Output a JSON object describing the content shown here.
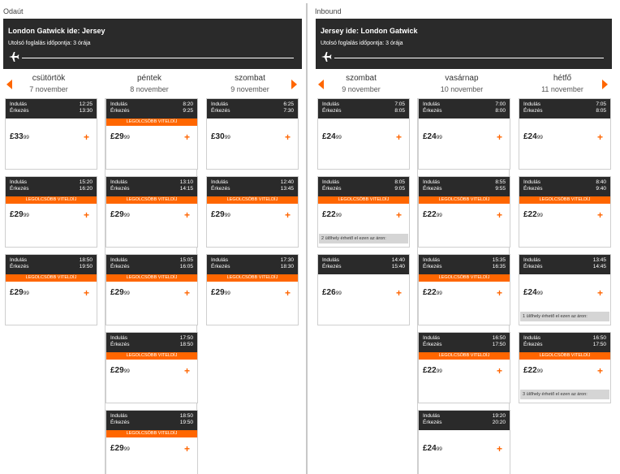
{
  "outbound": {
    "title": "Odaút",
    "route": "London Gatwick ide: Jersey",
    "deadline": "Utolsó foglalás időpontja: 3 órája",
    "days": [
      {
        "name": "csütörtök",
        "date": "7 november"
      },
      {
        "name": "péntek",
        "date": "8 november"
      },
      {
        "name": "szombat",
        "date": "9 november"
      }
    ]
  },
  "inbound": {
    "title": "Inbound",
    "route": "Jersey ide: London Gatwick",
    "deadline": "Utolsó foglalás időpontja: 3 órája",
    "days": [
      {
        "name": "szombat",
        "date": "9 november"
      },
      {
        "name": "vasárnap",
        "date": "10 november"
      },
      {
        "name": "hétfő",
        "date": "11 november"
      }
    ]
  },
  "labels": {
    "depart": "Indulás",
    "arrive": "Érkezés",
    "cheapest": "LEGOLCSÓBB VITELDÍJ",
    "plus": "+"
  },
  "flights": {
    "o0": [
      {
        "dep": "12:25",
        "arr": "13:30",
        "p": "£33",
        "c": "99",
        "cheap": false,
        "seats": ""
      },
      {
        "dep": "15:20",
        "arr": "16:20",
        "p": "£29",
        "c": "99",
        "cheap": true,
        "seats": ""
      },
      {
        "dep": "18:50",
        "arr": "19:50",
        "p": "£29",
        "c": "99",
        "cheap": true,
        "seats": ""
      }
    ],
    "o1": [
      {
        "dep": "8:20",
        "arr": "9:25",
        "p": "£29",
        "c": "99",
        "cheap": true,
        "seats": ""
      },
      {
        "dep": "13:10",
        "arr": "14:15",
        "p": "£29",
        "c": "99",
        "cheap": true,
        "seats": ""
      },
      {
        "dep": "15:05",
        "arr": "16:05",
        "p": "£29",
        "c": "99",
        "cheap": true,
        "seats": ""
      },
      {
        "dep": "17:50",
        "arr": "18:50",
        "p": "£29",
        "c": "99",
        "cheap": true,
        "seats": ""
      },
      {
        "dep": "18:50",
        "arr": "19:50",
        "p": "£29",
        "c": "99",
        "cheap": true,
        "seats": ""
      }
    ],
    "o2": [
      {
        "dep": "6:25",
        "arr": "7:30",
        "p": "£30",
        "c": "99",
        "cheap": false,
        "seats": ""
      },
      {
        "dep": "12:40",
        "arr": "13:45",
        "p": "£29",
        "c": "99",
        "cheap": true,
        "seats": ""
      },
      {
        "dep": "17:30",
        "arr": "18:30",
        "p": "£29",
        "c": "99",
        "cheap": true,
        "seats": ""
      }
    ],
    "i0": [
      {
        "dep": "7:05",
        "arr": "8:05",
        "p": "£24",
        "c": "99",
        "cheap": false,
        "seats": ""
      },
      {
        "dep": "8:05",
        "arr": "9:05",
        "p": "£22",
        "c": "99",
        "cheap": true,
        "seats": "2 ülőhely érhető el ezen az áron:"
      },
      {
        "dep": "14:40",
        "arr": "15:40",
        "p": "£26",
        "c": "99",
        "cheap": false,
        "seats": ""
      }
    ],
    "i1": [
      {
        "dep": "7:00",
        "arr": "8:00",
        "p": "£24",
        "c": "99",
        "cheap": false,
        "seats": ""
      },
      {
        "dep": "8:55",
        "arr": "9:55",
        "p": "£22",
        "c": "99",
        "cheap": true,
        "seats": ""
      },
      {
        "dep": "15:35",
        "arr": "16:35",
        "p": "£22",
        "c": "99",
        "cheap": true,
        "seats": ""
      },
      {
        "dep": "16:50",
        "arr": "17:50",
        "p": "£22",
        "c": "99",
        "cheap": true,
        "seats": ""
      },
      {
        "dep": "19:20",
        "arr": "20:20",
        "p": "£24",
        "c": "99",
        "cheap": false,
        "seats": ""
      }
    ],
    "i2": [
      {
        "dep": "7:05",
        "arr": "8:05",
        "p": "£24",
        "c": "99",
        "cheap": false,
        "seats": ""
      },
      {
        "dep": "8:40",
        "arr": "9:40",
        "p": "£22",
        "c": "99",
        "cheap": true,
        "seats": ""
      },
      {
        "dep": "13:45",
        "arr": "14:45",
        "p": "£24",
        "c": "99",
        "cheap": false,
        "seats": "1 ülőhely érhető el ezen az áron:"
      },
      {
        "dep": "16:50",
        "arr": "17:50",
        "p": "£22",
        "c": "99",
        "cheap": true,
        "seats": "3 ülőhely érhető el ezen az áron:"
      }
    ]
  }
}
